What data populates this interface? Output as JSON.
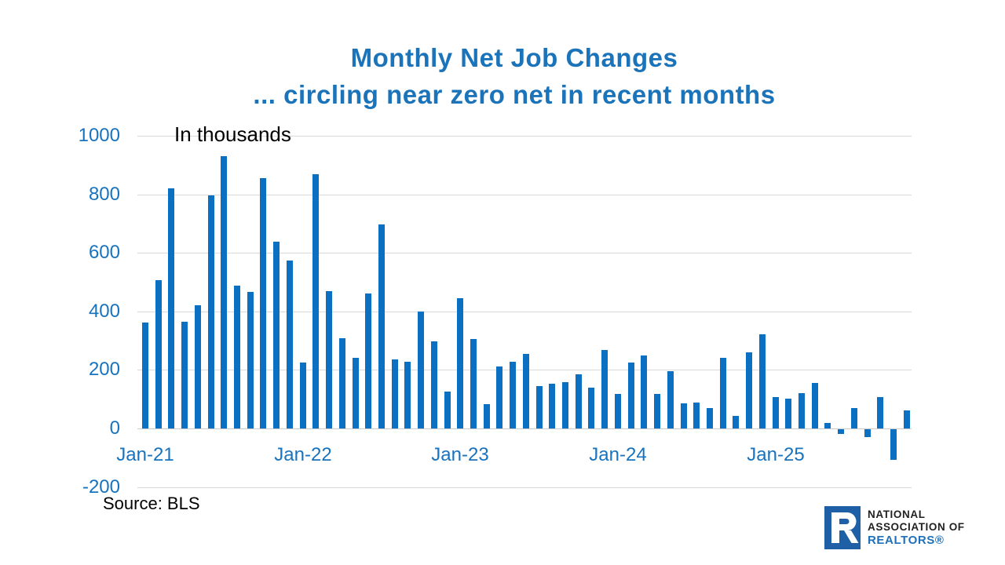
{
  "title": {
    "line1": "Monthly Net Job Changes",
    "line2": "... circling near zero net in recent months"
  },
  "source": "Source: BLS",
  "logo": {
    "line1": "NATIONAL",
    "line2": "ASSOCIATION OF",
    "line3": "REALTORS®",
    "r_glyph": "R"
  },
  "colors": {
    "bar": "#0C70C2",
    "title": "#1B73B9",
    "axis_labels": "#1873BE",
    "gridline": "#D9D9D9",
    "zero_line": "#C9C9C9",
    "text": "#000000",
    "logo_square": "#1E5FA6",
    "logo_text_dark": "#221F20",
    "logo_text_blue": "#1D70B9"
  },
  "chart_data": {
    "type": "bar",
    "title": "Monthly Net Job Changes ... circling near zero net in recent months",
    "units_label": "In thousands",
    "xlabel": "",
    "ylabel": "",
    "ylim": [
      -200,
      1000
    ],
    "yticks": [
      1000,
      800,
      600,
      400,
      200,
      0,
      -200
    ],
    "grid": true,
    "legend": false,
    "xtick_labels": [
      "Jan-21",
      "Jan-22",
      "Jan-23",
      "Jan-24",
      "Jan-25"
    ],
    "categories": [
      "Jan-21",
      "Feb-21",
      "Mar-21",
      "Apr-21",
      "May-21",
      "Jun-21",
      "Jul-21",
      "Aug-21",
      "Sep-21",
      "Oct-21",
      "Nov-21",
      "Dec-21",
      "Jan-22",
      "Feb-22",
      "Mar-22",
      "Apr-22",
      "May-22",
      "Jun-22",
      "Jul-22",
      "Aug-22",
      "Sep-22",
      "Oct-22",
      "Nov-22",
      "Dec-22",
      "Jan-23",
      "Feb-23",
      "Mar-23",
      "Apr-23",
      "May-23",
      "Jun-23",
      "Jul-23",
      "Aug-23",
      "Sep-23",
      "Oct-23",
      "Nov-23",
      "Dec-23",
      "Jan-24",
      "Feb-24",
      "Mar-24",
      "Apr-24",
      "May-24",
      "Jun-24",
      "Jul-24",
      "Aug-24",
      "Sep-24",
      "Oct-24",
      "Nov-24",
      "Dec-24",
      "Jan-25",
      "Feb-25",
      "Mar-25",
      "Apr-25",
      "May-25",
      "Jun-25",
      "Jul-25",
      "Aug-25",
      "Sep-25",
      "Oct-25",
      "Nov-25"
    ],
    "values": [
      363,
      508,
      821,
      365,
      420,
      795,
      929,
      488,
      467,
      855,
      637,
      574,
      225,
      868,
      470,
      308,
      240,
      460,
      697,
      236,
      229,
      400,
      298,
      126,
      444,
      305,
      84,
      213,
      227,
      256,
      146,
      154,
      158,
      186,
      139,
      268,
      119,
      225,
      248,
      118,
      195,
      86,
      88,
      70,
      240,
      43,
      259,
      321,
      108,
      101,
      121,
      155,
      20,
      -15,
      71,
      -27,
      107,
      -104,
      63
    ]
  }
}
